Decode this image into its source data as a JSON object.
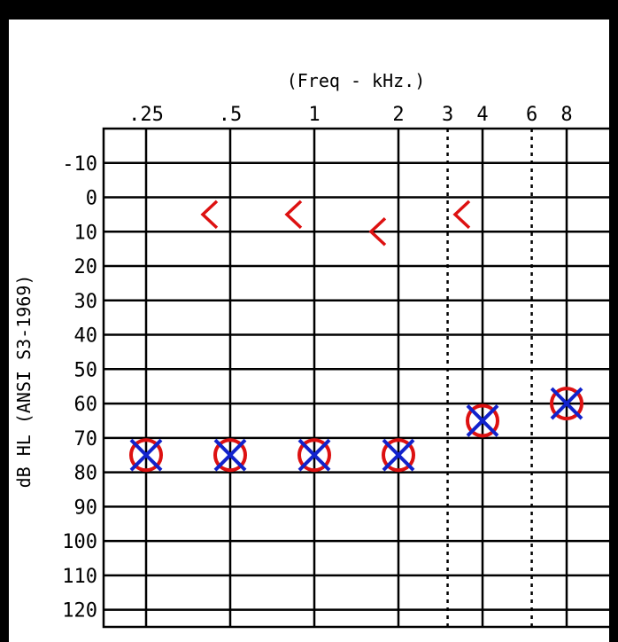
{
  "chart_data": {
    "type": "scatter",
    "title": "",
    "xlabel": "(Freq - kHz.)",
    "ylabel": "dB HL (ANSI S3-1969)",
    "x_tick_labels": [
      ".25",
      ".5",
      "1",
      "2",
      "3",
      "4",
      "6",
      "8"
    ],
    "x_ticks_khz": [
      0.25,
      0.5,
      1,
      2,
      3,
      4,
      6,
      8
    ],
    "x_dotted_ticks_khz": [
      3,
      6
    ],
    "x_scale": "log2",
    "y_tick_labels": [
      "-10",
      "0",
      "10",
      "20",
      "30",
      "40",
      "50",
      "60",
      "70",
      "80",
      "90",
      "100",
      "110",
      "120"
    ],
    "ylim": [
      -10,
      120
    ],
    "y_inverted": true,
    "grid": true,
    "series": [
      {
        "symbol": "circle",
        "color": "#dd1111",
        "points": [
          {
            "x": 0.25,
            "y": 75
          },
          {
            "x": 0.5,
            "y": 75
          },
          {
            "x": 1,
            "y": 75
          },
          {
            "x": 2,
            "y": 75
          },
          {
            "x": 4,
            "y": 65
          },
          {
            "x": 8,
            "y": 60
          }
        ]
      },
      {
        "symbol": "cross",
        "color": "#1122cc",
        "points": [
          {
            "x": 0.25,
            "y": 75
          },
          {
            "x": 0.5,
            "y": 75
          },
          {
            "x": 1,
            "y": 75
          },
          {
            "x": 2,
            "y": 75
          },
          {
            "x": 4,
            "y": 65
          },
          {
            "x": 8,
            "y": 60
          }
        ]
      },
      {
        "symbol": "left-bracket",
        "color": "#dd1111",
        "points": [
          {
            "x": 0.5,
            "y": 5
          },
          {
            "x": 1,
            "y": 5
          },
          {
            "x": 2,
            "y": 10
          },
          {
            "x": 4,
            "y": 5
          }
        ]
      }
    ]
  }
}
